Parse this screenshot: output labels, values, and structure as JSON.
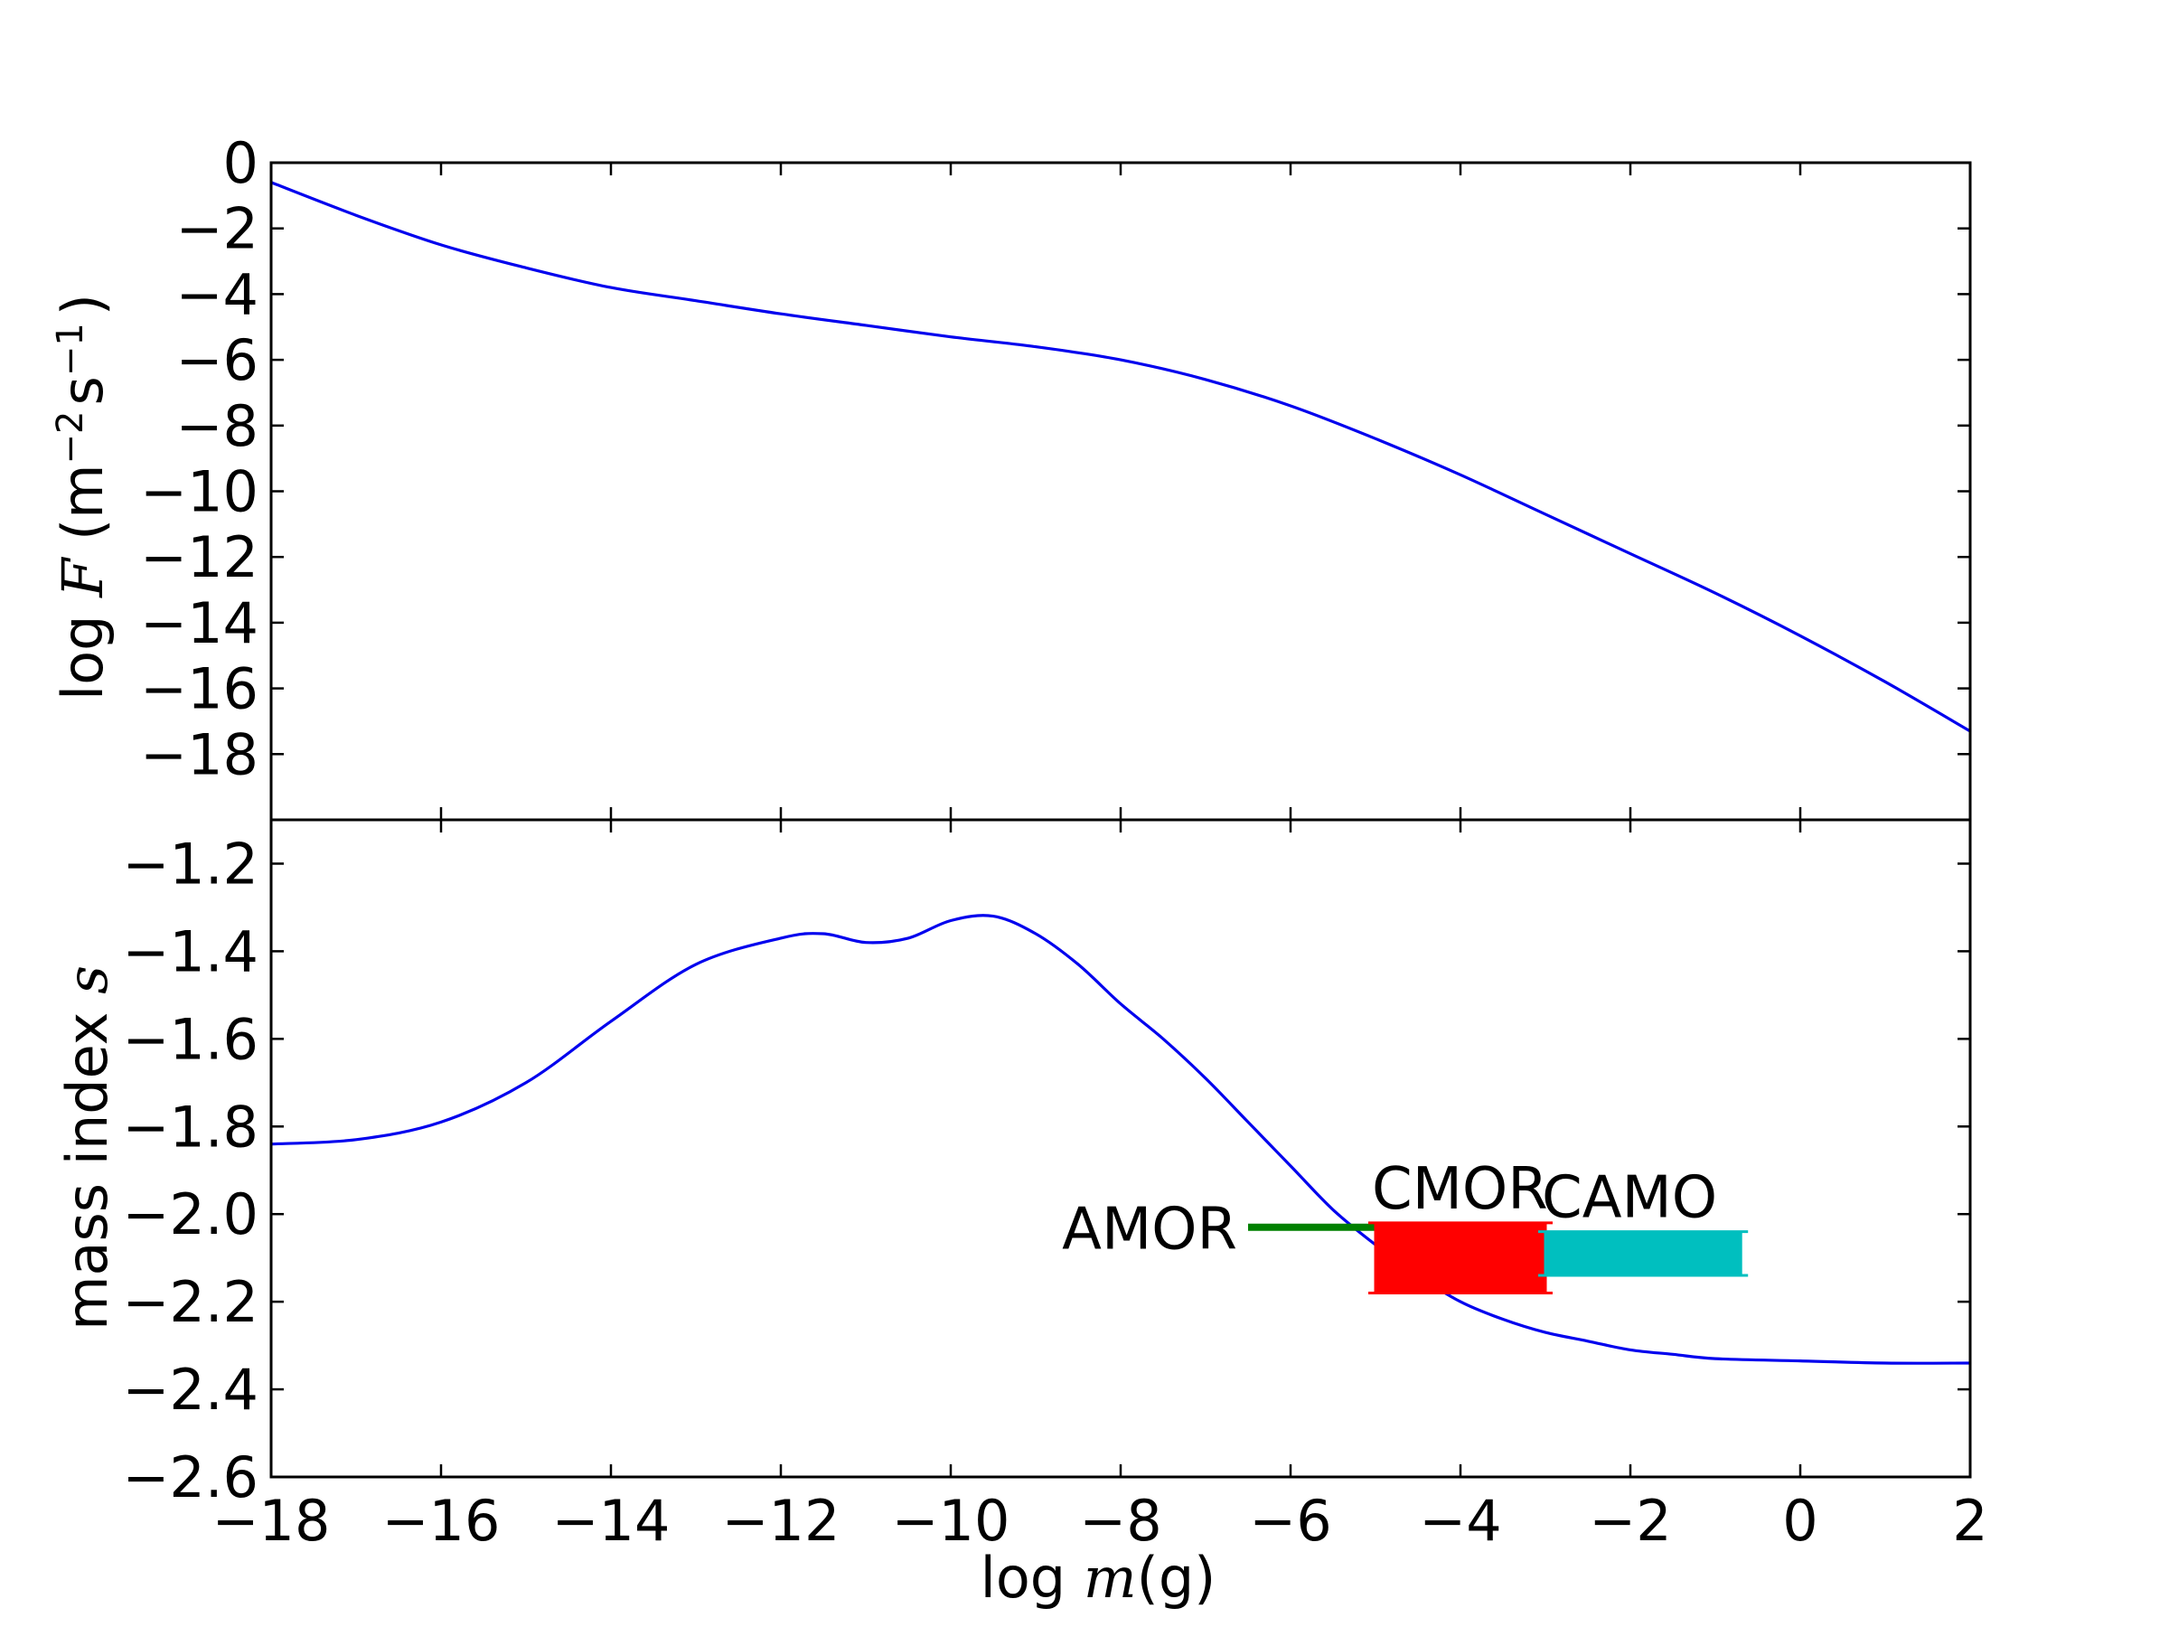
{
  "chart_data": [
    {
      "type": "line",
      "panel": "top",
      "ylabel": {
        "prefix": "log ",
        "italic": "F",
        "rest": " (m",
        "sup1": "−2",
        "mid": "s",
        "sup2": "−1",
        "end": ")"
      },
      "xlim": [
        -18,
        2
      ],
      "ylim": [
        -20,
        0
      ],
      "yticks": [
        0,
        -2,
        -4,
        -6,
        -8,
        -10,
        -12,
        -14,
        -16,
        -18
      ],
      "ytick_labels": [
        "0",
        "−2",
        "−4",
        "−6",
        "−8",
        "−10",
        "−12",
        "−14",
        "−16",
        "−18"
      ],
      "series": [
        {
          "color": "#0000ee",
          "x": [
            -18,
            -17,
            -16,
            -15,
            -14,
            -13,
            -12,
            -11,
            -10,
            -9,
            -8,
            -7,
            -6,
            -5,
            -4,
            -3,
            -2,
            -1,
            0,
            1,
            2
          ],
          "y": [
            -0.6,
            -1.6,
            -2.5,
            -3.2,
            -3.8,
            -4.2,
            -4.6,
            -4.95,
            -5.3,
            -5.6,
            -6.0,
            -6.6,
            -7.4,
            -8.4,
            -9.5,
            -10.7,
            -11.9,
            -13.1,
            -14.4,
            -15.8,
            -17.3
          ]
        }
      ]
    },
    {
      "type": "line",
      "panel": "bottom",
      "xlabel": {
        "prefix": "log ",
        "italic": "m",
        "rest": "(g)"
      },
      "ylabel": {
        "prefix": "mass index ",
        "italic": "s"
      },
      "xlim": [
        -18,
        2
      ],
      "ylim": [
        -2.6,
        -1.1
      ],
      "xticks": [
        -18,
        -16,
        -14,
        -12,
        -10,
        -8,
        -6,
        -4,
        -2,
        0,
        2
      ],
      "xtick_labels": [
        "−18",
        "−16",
        "−14",
        "−12",
        "−10",
        "−8",
        "−6",
        "−4",
        "−2",
        "0",
        "2"
      ],
      "yticks": [
        -1.2,
        -1.4,
        -1.6,
        -1.8,
        -2.0,
        -2.2,
        -2.4,
        -2.6
      ],
      "ytick_labels": [
        "−1.2",
        "−1.4",
        "−1.6",
        "−1.8",
        "−2.0",
        "−2.2",
        "−2.4",
        "−2.6"
      ],
      "series": [
        {
          "color": "#0000ee",
          "x": [
            -18,
            -17,
            -16,
            -15,
            -14,
            -13,
            -12,
            -11.5,
            -11,
            -10.5,
            -10,
            -9.5,
            -9,
            -8.5,
            -8,
            -7.5,
            -7,
            -6.5,
            -6,
            -5.5,
            -5,
            -4.5,
            -4,
            -3.5,
            -3,
            -2.5,
            -2,
            -1.5,
            -1,
            0,
            1,
            2
          ],
          "y": [
            -1.84,
            -1.83,
            -1.79,
            -1.7,
            -1.56,
            -1.43,
            -1.37,
            -1.36,
            -1.38,
            -1.37,
            -1.33,
            -1.32,
            -1.36,
            -1.43,
            -1.52,
            -1.6,
            -1.69,
            -1.79,
            -1.89,
            -1.99,
            -2.07,
            -2.14,
            -2.2,
            -2.24,
            -2.27,
            -2.29,
            -2.31,
            -2.32,
            -2.33,
            -2.335,
            -2.34,
            -2.34
          ]
        }
      ],
      "ranges": [
        {
          "label": "AMOR",
          "color": "#008000",
          "x": [
            -6.5,
            -4.5
          ],
          "y": [
            -2.03,
            -2.03
          ]
        },
        {
          "label": "CMOR",
          "color": "#ff0000",
          "x": [
            -5.0,
            -3.0
          ],
          "y": [
            -2.02,
            -2.18
          ]
        },
        {
          "label": "CAMO",
          "color": "#00bfbf",
          "x": [
            -3.0,
            -0.7
          ],
          "y": [
            -2.04,
            -2.14
          ]
        }
      ]
    }
  ]
}
